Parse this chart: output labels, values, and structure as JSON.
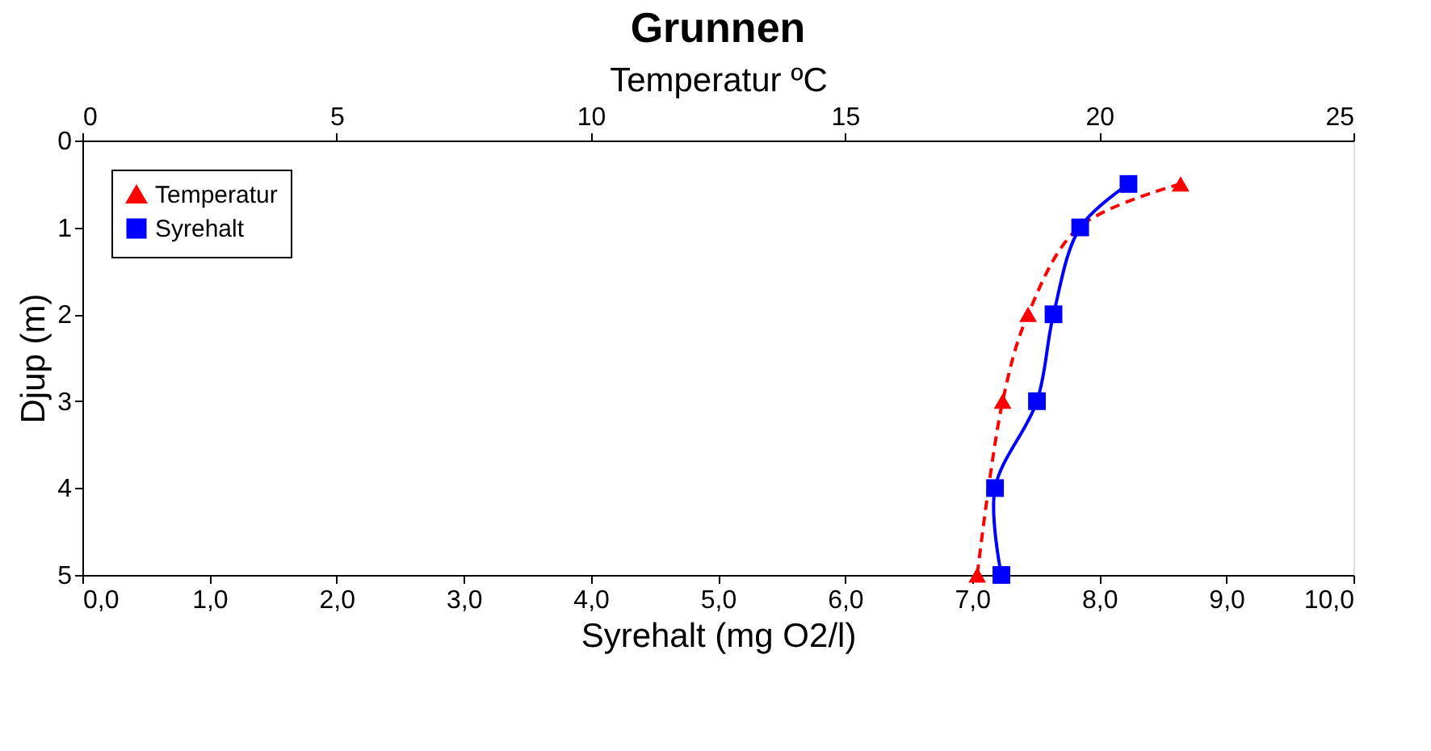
{
  "chart_data": {
    "type": "line",
    "title": "Grunnen",
    "xlabel": "Syrehalt (mg O2/l)",
    "x2label": "Temperatur ºC",
    "ylabel": "Djup (m)",
    "orientation": "horizontal",
    "xlim": [
      0,
      10
    ],
    "xticks": [
      {
        "value": 0,
        "label": "0,0"
      },
      {
        "value": 1,
        "label": "1,0"
      },
      {
        "value": 2,
        "label": "2,0"
      },
      {
        "value": 3,
        "label": "3,0"
      },
      {
        "value": 4,
        "label": "4,0"
      },
      {
        "value": 5,
        "label": "5,0"
      },
      {
        "value": 6,
        "label": "6,0"
      },
      {
        "value": 7,
        "label": "7,0"
      },
      {
        "value": 8,
        "label": "8,0"
      },
      {
        "value": 9,
        "label": "9,0"
      },
      {
        "value": 10,
        "label": "10,0"
      }
    ],
    "x2lim": [
      0,
      25
    ],
    "x2ticks": [
      0,
      5,
      10,
      15,
      20,
      25
    ],
    "ylim": [
      5,
      0
    ],
    "yticks": [
      0,
      1,
      2,
      3,
      4,
      5
    ],
    "grid": false,
    "legend": "top left",
    "series": [
      {
        "name": "Temperatur",
        "color": "#ff0000",
        "axis": "x2",
        "marker": "triangle",
        "line_style": "dashed",
        "x": [
          0.5,
          1,
          2,
          3,
          5
        ],
        "values": [
          21.6,
          19.6,
          18.6,
          18.1,
          17.6
        ]
      },
      {
        "name": "Syrehalt",
        "color": "#0000ff",
        "marker": "square",
        "line_style": "solid",
        "x": [
          0.5,
          1,
          2,
          3,
          4,
          5
        ],
        "values": [
          8.23,
          7.85,
          7.64,
          7.51,
          7.18,
          7.23
        ]
      }
    ]
  }
}
